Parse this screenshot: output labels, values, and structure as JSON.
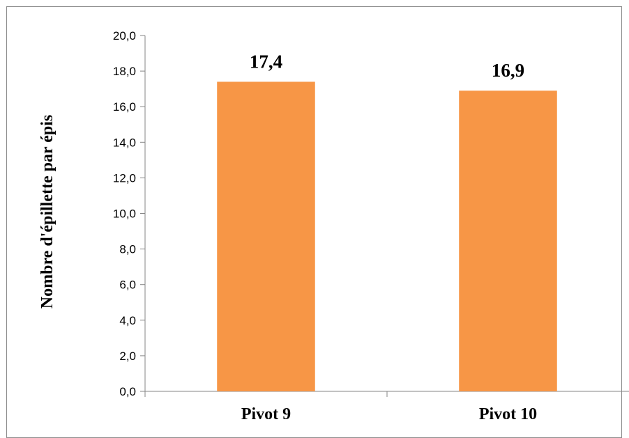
{
  "chart_data": {
    "type": "bar",
    "categories": [
      "Pivot 9",
      "Pivot 10"
    ],
    "values": [
      17.4,
      16.9
    ],
    "data_labels": [
      "17,4",
      "16,9"
    ],
    "ylabel": "Nombre d'épillette par épis",
    "ylim": [
      0,
      20
    ],
    "yticks": [
      "0,0",
      "2,0",
      "4,0",
      "6,0",
      "8,0",
      "10,0",
      "12,0",
      "14,0",
      "16,0",
      "18,0",
      "20,0"
    ],
    "grid": false,
    "legend": "none",
    "bar_color": "#f79646"
  }
}
